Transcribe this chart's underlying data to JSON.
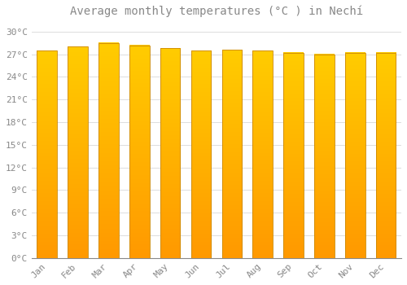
{
  "title": "Average monthly temperatures (°C ) in Nechí",
  "months": [
    "Jan",
    "Feb",
    "Mar",
    "Apr",
    "May",
    "Jun",
    "Jul",
    "Aug",
    "Sep",
    "Oct",
    "Nov",
    "Dec"
  ],
  "temperatures": [
    27.5,
    28.0,
    28.5,
    28.2,
    27.8,
    27.5,
    27.6,
    27.5,
    27.2,
    27.0,
    27.2,
    27.2
  ],
  "bar_color_top": "#FFCC00",
  "bar_color_bottom": "#FF9900",
  "bar_edge_color": "#CC8800",
  "background_color": "#FFFFFF",
  "grid_color": "#DDDDDD",
  "text_color": "#888888",
  "ylim": [
    0,
    31
  ],
  "yticks": [
    0,
    3,
    6,
    9,
    12,
    15,
    18,
    21,
    24,
    27,
    30
  ],
  "title_fontsize": 10,
  "tick_fontsize": 8,
  "bar_width": 0.65
}
